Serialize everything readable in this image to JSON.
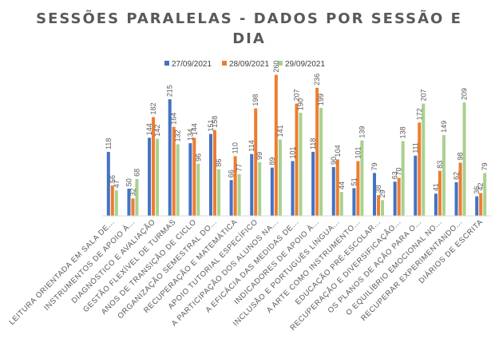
{
  "chart_data": {
    "type": "bar",
    "title_lines": [
      "SESSÕES PARALELAS - DADOS POR SESSÃO E",
      "DIA"
    ],
    "xlabel": "",
    "ylabel": "",
    "ylim": [
      0,
      280
    ],
    "grid": false,
    "legend_position": "top",
    "colors": [
      "#4472C4",
      "#ED7D31",
      "#A9D18E"
    ],
    "categories": [
      "LEITURA ORIENTADA EM SALA DE...",
      "INSTRUMENTOS DE APOIO À...",
      "DIAGNÓSTICO E AVALIAÇÃO",
      "GESTÃO FLEXÍVEL DE TURMAS",
      "ANOS DE TRANSIÇÃO DE CICLO",
      "ORGANIZAÇÃO SEMESTRAL DO...",
      "RECUPERAÇÃO E MATEMÁTICA",
      "APOIO TUTORIAL ESPECÍFICO",
      "A PARTICIPAÇÃO DOS ALUNOS NA...",
      "A EFICÁCIA DAS MEDIDAS DE...",
      "INDICADORES DE APOIO À...",
      "INCLUSÃO E PORTUGUÊS LÍNGUA...",
      "A ARTE COMO INSTRUMENTO...",
      "EDUCAÇÃO PRÉ-ESCOLAR...",
      "RECUPERAÇÃO E DIVERSIFICAÇÃO...",
      "OS PLANOS DE AÇÃO PARA O...",
      "O EQUILÍBRIO EMOCIONAL NO...",
      "RECUPERAR EXPERIMENTANDO...",
      "DIÁRIOS DE ESCRITA"
    ],
    "series": [
      {
        "name": "27/09/2021",
        "values": [
          118,
          50,
          144,
          215,
          134,
          151,
          66,
          114,
          89,
          101,
          118,
          90,
          51,
          79,
          63,
          111,
          41,
          62,
          36
        ]
      },
      {
        "name": "28/09/2021",
        "values": [
          56,
          32,
          182,
          164,
          144,
          158,
          110,
          198,
          260,
          207,
          236,
          104,
          101,
          38,
          70,
          172,
          83,
          98,
          42
        ]
      },
      {
        "name": "29/09/2021",
        "values": [
          47,
          68,
          142,
          132,
          96,
          86,
          77,
          99,
          141,
          190,
          199,
          44,
          139,
          29,
          138,
          207,
          149,
          209,
          79
        ]
      }
    ]
  }
}
